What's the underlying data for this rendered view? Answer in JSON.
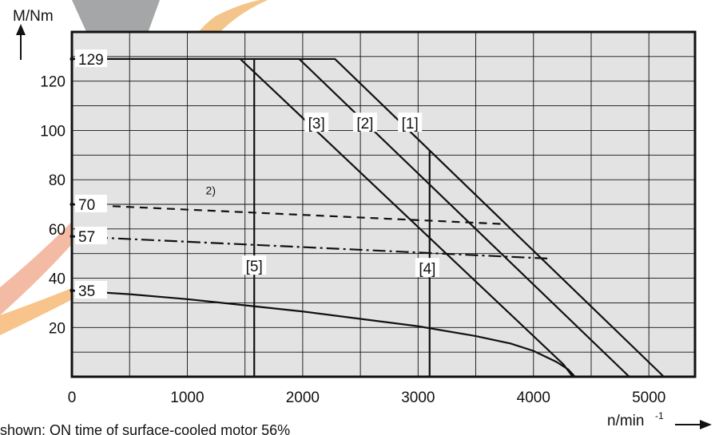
{
  "chart_data": {
    "type": "line",
    "ylabel": "M/Nm",
    "xlabel": "n/min",
    "xlabel_superscript": "-1",
    "xlim": [
      0,
      5400
    ],
    "ylim": [
      0,
      140
    ],
    "xticks": [
      0,
      1000,
      2000,
      3000,
      4000,
      5000
    ],
    "yticks": [
      20,
      40,
      60,
      80,
      100,
      120
    ],
    "grid": true,
    "background": "#e3e3e3",
    "series": [
      {
        "name": "[1]",
        "style": "solid",
        "x": [
          0,
          2280,
          5130
        ],
        "y": [
          129,
          129,
          0
        ]
      },
      {
        "name": "[2]",
        "style": "solid",
        "x": [
          0,
          1970,
          4830
        ],
        "y": [
          129,
          129,
          0
        ]
      },
      {
        "name": "[3]",
        "style": "solid",
        "x": [
          0,
          1460,
          4260,
          4340
        ],
        "y": [
          129,
          129,
          5,
          0
        ]
      },
      {
        "name": "",
        "style": "solid",
        "x": [
          0,
          500,
          1000,
          1500,
          2000,
          2500,
          3000,
          3500,
          3800,
          4000,
          4200,
          4300,
          4360
        ],
        "y": [
          35,
          33.5,
          31.5,
          29,
          26.5,
          23.5,
          20.5,
          16.5,
          13.5,
          10.5,
          6,
          3,
          0
        ]
      },
      {
        "name": "",
        "style": "dashed",
        "x": [
          0,
          3740
        ],
        "y": [
          70,
          62
        ]
      },
      {
        "name": "",
        "style": "dashdot",
        "x": [
          0,
          4120
        ],
        "y": [
          57,
          48
        ]
      },
      {
        "name": "[4]",
        "style": "solid",
        "x": [
          3100,
          3100
        ],
        "y": [
          0,
          92
        ]
      },
      {
        "name": "[5]",
        "style": "solid",
        "x": [
          1580,
          1580
        ],
        "y": [
          0,
          129
        ]
      }
    ],
    "value_labels": [
      {
        "text": "129",
        "y": 129
      },
      {
        "text": "70",
        "y": 70
      },
      {
        "text": "57",
        "y": 57
      },
      {
        "text": "35",
        "y": 35
      }
    ],
    "curve_tags": [
      {
        "text": "[1]",
        "x": 2930,
        "y": 103
      },
      {
        "text": "[2]",
        "x": 2540,
        "y": 103
      },
      {
        "text": "[3]",
        "x": 2120,
        "y": 103
      },
      {
        "text": "[4]",
        "x": 3080,
        "y": 44
      },
      {
        "text": "[5]",
        "x": 1580,
        "y": 45
      }
    ],
    "footnote_marker": {
      "text": "2)",
      "x": 1160,
      "y": 74
    },
    "note": "shown: ON time of surface-cooled motor 56%"
  }
}
